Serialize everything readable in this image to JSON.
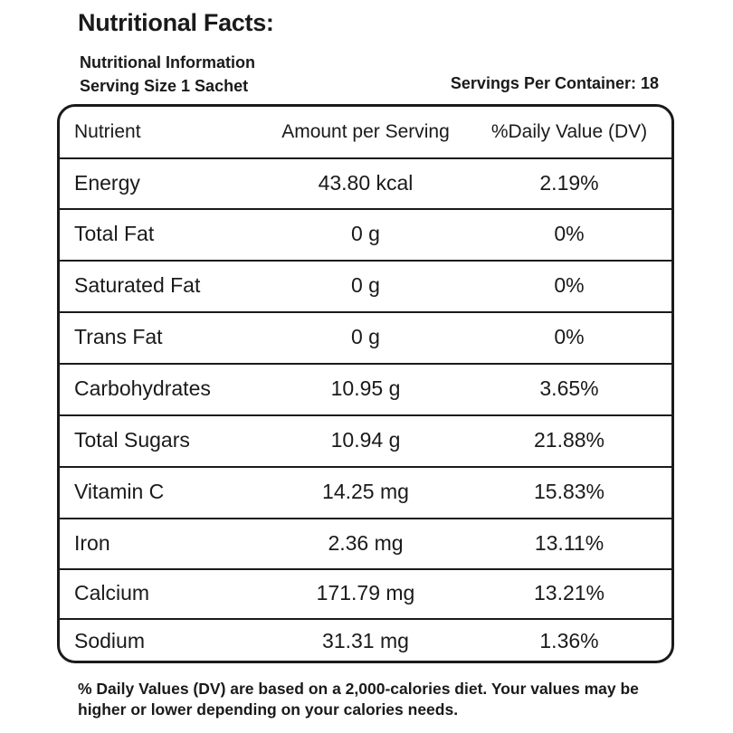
{
  "title": "Nutritional Facts:",
  "info_heading": "Nutritional Information",
  "serving_size": "Serving Size 1 Sachet",
  "servings_per_container": "Servings Per Container: 18",
  "table": {
    "headers": [
      "Nutrient",
      "Amount per Serving",
      "%Daily Value (DV)"
    ],
    "rows": [
      {
        "nutrient": "Energy",
        "amount": "43.80 kcal",
        "dv": "2.19%"
      },
      {
        "nutrient": "Total Fat",
        "amount": "0 g",
        "dv": "0%"
      },
      {
        "nutrient": "Saturated Fat",
        "amount": "0 g",
        "dv": "0%"
      },
      {
        "nutrient": "Trans Fat",
        "amount": "0 g",
        "dv": "0%"
      },
      {
        "nutrient": "Carbohydrates",
        "amount": "10.95 g",
        "dv": "3.65%"
      },
      {
        "nutrient": "Total Sugars",
        "amount": "10.94 g",
        "dv": "21.88%"
      },
      {
        "nutrient": "Vitamin C",
        "amount": "14.25 mg",
        "dv": "15.83%"
      },
      {
        "nutrient": "Iron",
        "amount": "2.36 mg",
        "dv": "13.11%"
      },
      {
        "nutrient": "Calcium",
        "amount": "171.79 mg",
        "dv": "13.21%"
      },
      {
        "nutrient": "Sodium",
        "amount": "31.31 mg",
        "dv": "1.36%"
      }
    ]
  },
  "footnote": "% Daily Values (DV) are based on a 2,000-calories diet. Your values may be higher or lower depending on your calories needs."
}
